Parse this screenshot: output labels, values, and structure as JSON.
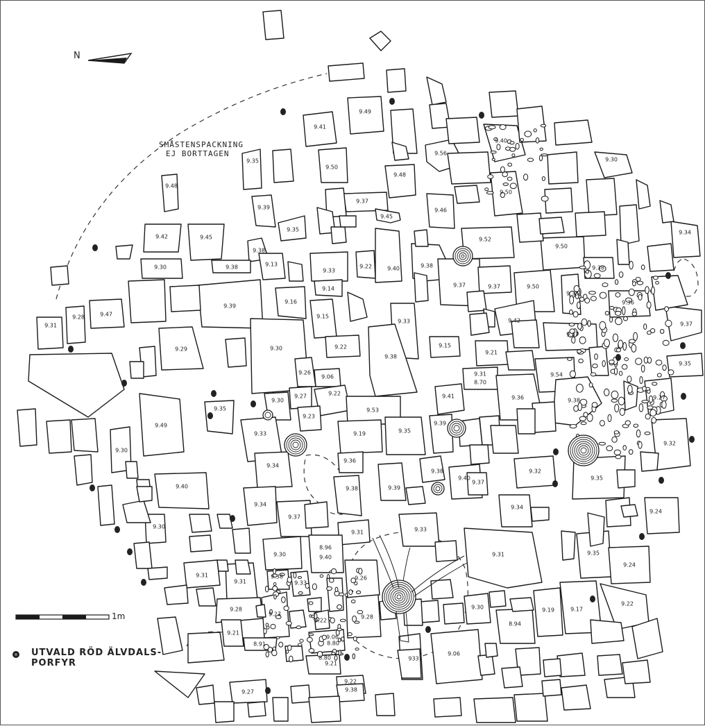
{
  "north_label": "N",
  "note_lines": [
    "SMÅSTENSPACKNING",
    "EJ BORTTAGEN"
  ],
  "scale_label": "1m",
  "legend": {
    "symbol": "porphyry-dot-icon",
    "lines": [
      "UTVALD RÖD ÄLVDALS-",
      "PORFYR"
    ]
  },
  "colors": {
    "ink": "#1a1a1a",
    "paper": "#ffffff"
  },
  "level_labels": [
    "9.49",
    "9.41",
    "9.56",
    "9.40",
    "9.30",
    "9.35",
    "9.50",
    "9.48",
    "9.48",
    "9.50",
    "9.37",
    "9.46",
    "9.39",
    "9.35",
    "9.45",
    "9.52",
    "9.42",
    "9.45",
    "9.34",
    "9.38",
    "9.13",
    "9.30",
    "9.38",
    "9.33",
    "9.22",
    "9.40",
    "9.38",
    "9.37",
    "9.37",
    "9.50",
    "9.50",
    "9.38",
    "9.14",
    "9.39",
    "9.16",
    "9.33",
    "9.36",
    "9.28",
    "9.47",
    "9.31",
    "9.15",
    "9.33",
    "9.42",
    "9.37",
    "9.37",
    "9.29",
    "9.30",
    "9.22",
    "9.38",
    "9.15",
    "9.21",
    "9.35",
    "9.26",
    "9.06",
    "9.31",
    "8.70",
    "9.54",
    "9.38",
    "9.22",
    "9.27",
    "9.23",
    "9.41",
    "9.36",
    "9.27",
    "9.30",
    "9.53",
    "9.35",
    "9.49",
    "9.35",
    "9.33",
    "9.19",
    "9.39",
    "9.32",
    "9.30",
    "9.34",
    "9.36",
    "9.38",
    "9.40",
    "9.37",
    "9.32",
    "9.35",
    "9.40",
    "9.38",
    "9.39",
    "9.24",
    "9.34",
    "9.34",
    "9.37",
    "9.30",
    "9.33",
    "9.31",
    "8.96",
    "9.40",
    "9.31",
    "9.30",
    "9.35",
    "9.24",
    "9.31",
    "9.31",
    "9.38",
    "9.33",
    "9.26",
    "9.28",
    "9.27",
    "9.28",
    "9.30",
    "9.19",
    "9.17",
    "9.22",
    "8.94",
    "9.21",
    "8.91",
    "933",
    "9.22",
    "9.06",
    "8.80",
    "9.06",
    "8.80",
    "9.21",
    "9.22",
    "9.38",
    "9.27"
  ]
}
